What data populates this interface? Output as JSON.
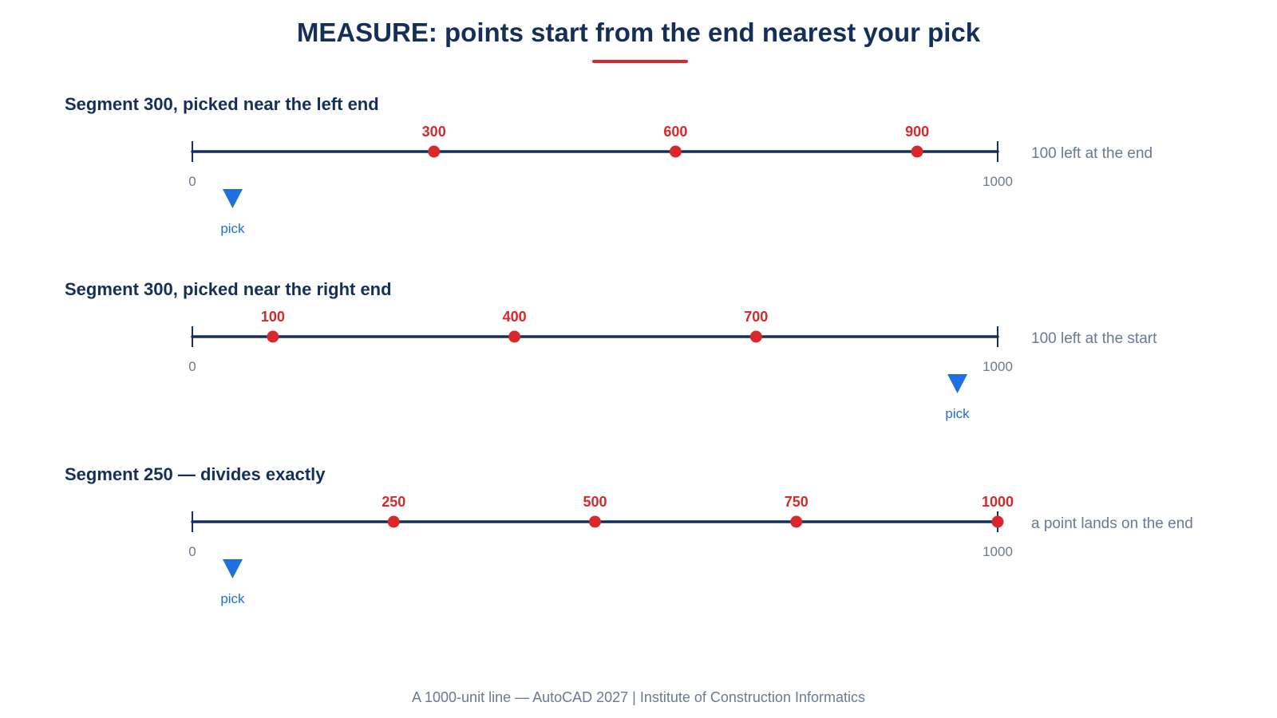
{
  "title": "MEASURE: points start from the end nearest your pick",
  "footer": "A 1000-unit line — AutoCAD 2027 | Institute of Construction Informatics",
  "colors": {
    "navy": "#14305a",
    "red": "#d8282b",
    "blue": "#1f6fe0",
    "gray": "#6a7a93"
  },
  "line": {
    "start_label": "0",
    "end_label": "1000",
    "start": 0,
    "end": 1000
  },
  "pick_label": "pick",
  "diagrams": [
    {
      "heading": "Segment 300, picked near the left end",
      "points": [
        300,
        600,
        900
      ],
      "point_labels": [
        "300",
        "600",
        "900"
      ],
      "pick_at": 50,
      "note": "100 left at the end"
    },
    {
      "heading": "Segment 300, picked near the right end",
      "points": [
        100,
        400,
        700
      ],
      "point_labels": [
        "100",
        "400",
        "700"
      ],
      "pick_at": 950,
      "note": "100 left at the start"
    },
    {
      "heading": "Segment 250 — divides exactly",
      "points": [
        250,
        500,
        750,
        1000
      ],
      "point_labels": [
        "250",
        "500",
        "750",
        "1000"
      ],
      "pick_at": 50,
      "note": "a point lands on the end"
    }
  ]
}
